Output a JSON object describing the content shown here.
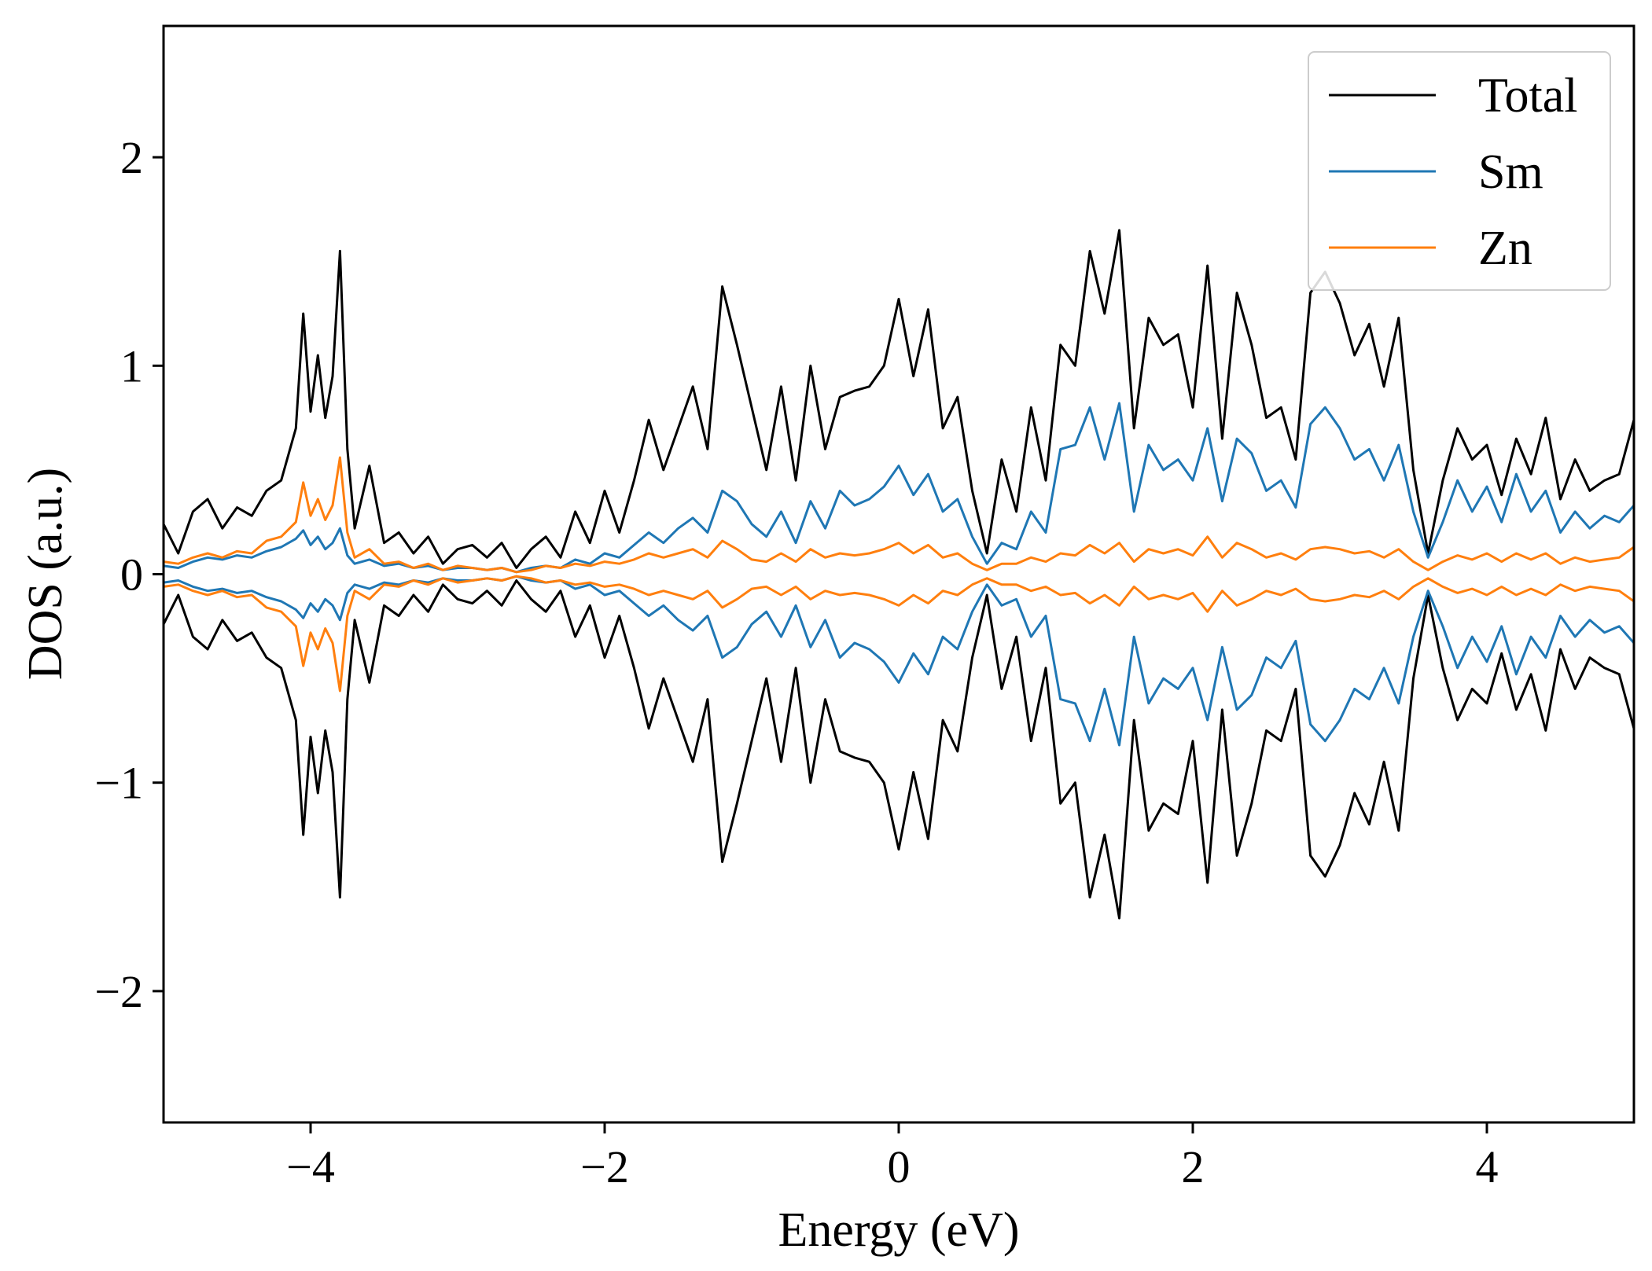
{
  "chart_data": {
    "type": "line",
    "title": "",
    "xlabel": "Energy (eV)",
    "ylabel": "DOS (a.u.)",
    "xlim": [
      -5,
      5
    ],
    "ylim": [
      -2.63,
      2.63
    ],
    "x_ticks": [
      -4,
      -2,
      0,
      2,
      4
    ],
    "y_ticks": [
      -2,
      -1,
      0,
      1,
      2
    ],
    "x_tick_labels": [
      "−4",
      "−2",
      "0",
      "2",
      "4"
    ],
    "y_tick_labels": [
      "−2",
      "−1",
      "0",
      "1",
      "2"
    ],
    "grid": false,
    "legend_position": "top-right",
    "note": "Spin-polarized DOS: each series is mirrored (up: positive, down: negative).",
    "x": [
      -5.0,
      -4.9,
      -4.8,
      -4.7,
      -4.6,
      -4.5,
      -4.4,
      -4.3,
      -4.2,
      -4.1,
      -4.05,
      -4.0,
      -3.95,
      -3.9,
      -3.85,
      -3.8,
      -3.75,
      -3.7,
      -3.6,
      -3.5,
      -3.4,
      -3.3,
      -3.2,
      -3.1,
      -3.0,
      -2.9,
      -2.8,
      -2.7,
      -2.6,
      -2.5,
      -2.4,
      -2.3,
      -2.2,
      -2.1,
      -2.0,
      -1.9,
      -1.8,
      -1.7,
      -1.6,
      -1.5,
      -1.4,
      -1.3,
      -1.2,
      -1.1,
      -1.0,
      -0.9,
      -0.8,
      -0.7,
      -0.6,
      -0.5,
      -0.4,
      -0.3,
      -0.2,
      -0.1,
      0.0,
      0.1,
      0.2,
      0.3,
      0.4,
      0.5,
      0.6,
      0.7,
      0.8,
      0.9,
      1.0,
      1.1,
      1.2,
      1.3,
      1.4,
      1.5,
      1.6,
      1.7,
      1.8,
      1.9,
      2.0,
      2.1,
      2.2,
      2.3,
      2.4,
      2.5,
      2.6,
      2.7,
      2.8,
      2.9,
      3.0,
      3.1,
      3.2,
      3.3,
      3.4,
      3.5,
      3.6,
      3.7,
      3.8,
      3.9,
      4.0,
      4.1,
      4.2,
      4.3,
      4.4,
      4.5,
      4.6,
      4.7,
      4.8,
      4.9,
      5.0
    ],
    "series": [
      {
        "name": "Total",
        "color": "#000000",
        "values": [
          0.24,
          0.1,
          0.3,
          0.36,
          0.22,
          0.32,
          0.28,
          0.4,
          0.45,
          0.7,
          1.25,
          0.78,
          1.05,
          0.75,
          0.95,
          1.55,
          0.6,
          0.22,
          0.52,
          0.15,
          0.2,
          0.1,
          0.18,
          0.05,
          0.12,
          0.14,
          0.08,
          0.15,
          0.03,
          0.12,
          0.18,
          0.08,
          0.3,
          0.15,
          0.4,
          0.2,
          0.45,
          0.74,
          0.5,
          0.7,
          0.9,
          0.6,
          1.38,
          1.1,
          0.8,
          0.5,
          0.9,
          0.45,
          1.0,
          0.6,
          0.85,
          0.88,
          0.9,
          1.0,
          1.32,
          0.95,
          1.27,
          0.7,
          0.85,
          0.4,
          0.1,
          0.55,
          0.3,
          0.8,
          0.45,
          1.1,
          1.0,
          1.55,
          1.25,
          1.65,
          0.7,
          1.23,
          1.1,
          1.15,
          0.8,
          1.48,
          0.65,
          1.35,
          1.1,
          0.75,
          0.8,
          0.55,
          1.35,
          1.45,
          1.3,
          1.05,
          1.2,
          0.9,
          1.23,
          0.5,
          0.1,
          0.45,
          0.7,
          0.55,
          0.62,
          0.38,
          0.65,
          0.48,
          0.75,
          0.36,
          0.55,
          0.4,
          0.45,
          0.48,
          0.74
        ]
      },
      {
        "name": "Sm",
        "color": "#1f77b4",
        "values": [
          0.04,
          0.03,
          0.06,
          0.08,
          0.07,
          0.09,
          0.08,
          0.11,
          0.13,
          0.17,
          0.21,
          0.14,
          0.18,
          0.12,
          0.15,
          0.22,
          0.09,
          0.05,
          0.07,
          0.04,
          0.05,
          0.03,
          0.04,
          0.02,
          0.03,
          0.03,
          0.02,
          0.03,
          0.01,
          0.03,
          0.04,
          0.03,
          0.07,
          0.05,
          0.1,
          0.08,
          0.14,
          0.2,
          0.15,
          0.22,
          0.27,
          0.2,
          0.4,
          0.35,
          0.24,
          0.18,
          0.3,
          0.15,
          0.35,
          0.22,
          0.4,
          0.33,
          0.36,
          0.42,
          0.52,
          0.38,
          0.48,
          0.3,
          0.36,
          0.18,
          0.05,
          0.15,
          0.12,
          0.3,
          0.2,
          0.6,
          0.62,
          0.8,
          0.55,
          0.82,
          0.3,
          0.62,
          0.5,
          0.55,
          0.45,
          0.7,
          0.35,
          0.65,
          0.58,
          0.4,
          0.45,
          0.32,
          0.72,
          0.8,
          0.7,
          0.55,
          0.6,
          0.45,
          0.62,
          0.3,
          0.08,
          0.25,
          0.45,
          0.3,
          0.42,
          0.25,
          0.48,
          0.3,
          0.4,
          0.2,
          0.3,
          0.22,
          0.28,
          0.25,
          0.33
        ]
      },
      {
        "name": "Zn",
        "color": "#ff7f0e",
        "values": [
          0.06,
          0.05,
          0.08,
          0.1,
          0.08,
          0.11,
          0.1,
          0.16,
          0.18,
          0.25,
          0.44,
          0.28,
          0.36,
          0.26,
          0.33,
          0.56,
          0.2,
          0.08,
          0.12,
          0.05,
          0.06,
          0.03,
          0.05,
          0.02,
          0.04,
          0.03,
          0.02,
          0.03,
          0.01,
          0.02,
          0.04,
          0.03,
          0.05,
          0.04,
          0.06,
          0.05,
          0.07,
          0.1,
          0.08,
          0.1,
          0.12,
          0.08,
          0.16,
          0.12,
          0.07,
          0.06,
          0.1,
          0.06,
          0.12,
          0.08,
          0.1,
          0.09,
          0.1,
          0.12,
          0.15,
          0.1,
          0.14,
          0.08,
          0.1,
          0.05,
          0.02,
          0.05,
          0.05,
          0.08,
          0.06,
          0.1,
          0.09,
          0.14,
          0.1,
          0.15,
          0.06,
          0.12,
          0.1,
          0.12,
          0.09,
          0.18,
          0.08,
          0.15,
          0.12,
          0.08,
          0.1,
          0.07,
          0.12,
          0.13,
          0.12,
          0.1,
          0.11,
          0.08,
          0.12,
          0.06,
          0.02,
          0.06,
          0.09,
          0.07,
          0.1,
          0.06,
          0.1,
          0.07,
          0.1,
          0.05,
          0.08,
          0.06,
          0.07,
          0.08,
          0.13
        ]
      }
    ]
  }
}
